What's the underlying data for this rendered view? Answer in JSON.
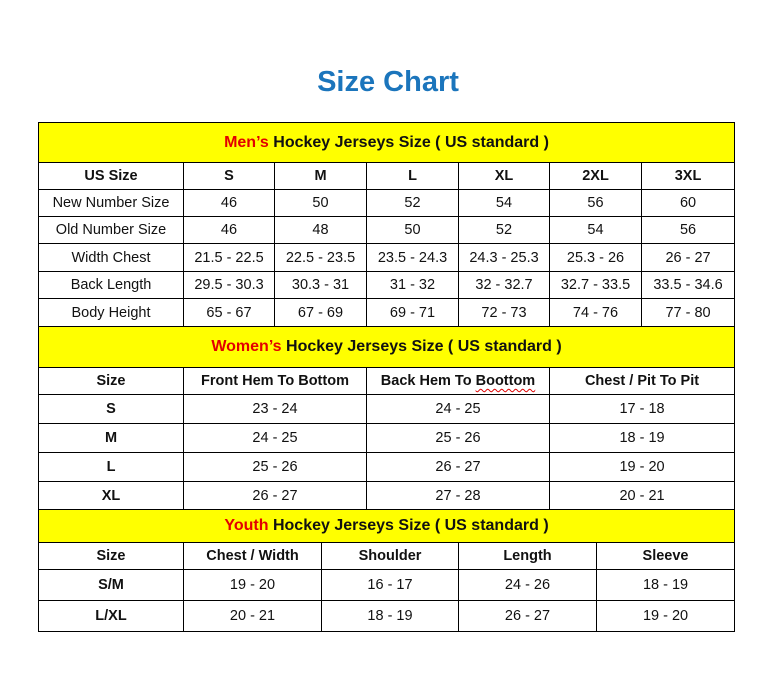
{
  "title": "Size Chart",
  "colors": {
    "title": "#1b75bc",
    "header_bg": "#ffff00",
    "accent_red": "#e30000"
  },
  "mens": {
    "header_accent": "Men’s",
    "header_rest": " Hockey Jerseys Size ( US standard )",
    "columns": [
      "US Size",
      "S",
      "M",
      "L",
      "XL",
      "2XL",
      "3XL"
    ],
    "rows": [
      [
        "New Number Size",
        "46",
        "50",
        "52",
        "54",
        "56",
        "60"
      ],
      [
        "Old Number Size",
        "46",
        "48",
        "50",
        "52",
        "54",
        "56"
      ],
      [
        "Width Chest",
        "21.5 - 22.5",
        "22.5 - 23.5",
        "23.5 - 24.3",
        "24.3 - 25.3",
        "25.3 - 26",
        "26 - 27"
      ],
      [
        "Back Length",
        "29.5 - 30.3",
        "30.3 - 31",
        "31 - 32",
        "32 - 32.7",
        "32.7 - 33.5",
        "33.5 - 34.6"
      ],
      [
        "Body Height",
        "65 - 67",
        "67 - 69",
        "69 - 71",
        "72 - 73",
        "74 - 76",
        "77 - 80"
      ]
    ]
  },
  "womens": {
    "header_accent": "Women’s",
    "header_rest": " Hockey Jerseys Size ( US standard )",
    "columns": [
      "Size",
      "Front Hem To Bottom",
      "Back Hem To Boottom",
      "Chest / Pit To Pit"
    ],
    "rows": [
      [
        "S",
        "23 - 24",
        "24 - 25",
        "17 - 18"
      ],
      [
        "M",
        "24 - 25",
        "25 - 26",
        "18 - 19"
      ],
      [
        "L",
        "25 - 26",
        "26 - 27",
        "19 - 20"
      ],
      [
        "XL",
        "26 - 27",
        "27 - 28",
        "20 - 21"
      ]
    ]
  },
  "youth": {
    "header_accent": "Youth",
    "header_rest": " Hockey Jerseys Size ( US standard )",
    "columns": [
      "Size",
      "Chest / Width",
      "Shoulder",
      "Length",
      "Sleeve"
    ],
    "rows": [
      [
        "S/M",
        "19 - 20",
        "16 - 17",
        "24 - 26",
        "18 - 19"
      ],
      [
        "L/XL",
        "20 - 21",
        "18 - 19",
        "26 - 27",
        "19 - 20"
      ]
    ]
  }
}
